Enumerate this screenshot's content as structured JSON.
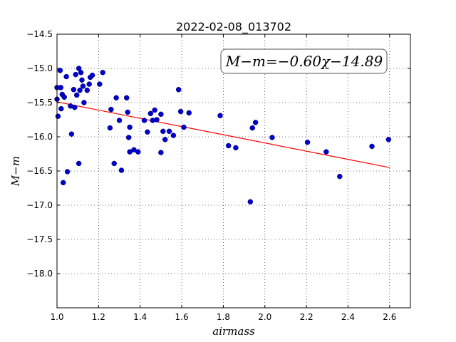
{
  "chart_data": {
    "type": "scatter",
    "title": "2022-02-08_013702",
    "xlabel": "airmass",
    "ylabel": "M−m",
    "xlim": [
      1.0,
      2.7
    ],
    "ylim": [
      -18.5,
      -14.5
    ],
    "y_inverted": true,
    "grid": true,
    "x_ticks": [
      1.0,
      1.2,
      1.4,
      1.6,
      1.8,
      2.0,
      2.2,
      2.4,
      2.6
    ],
    "x_tick_labels": [
      "1.0",
      "1.2",
      "1.4",
      "1.6",
      "1.8",
      "2.0",
      "2.2",
      "2.4",
      "2.6"
    ],
    "y_ticks": [
      -14.5,
      -15.0,
      -15.5,
      -16.0,
      -16.5,
      -17.0,
      -17.5,
      -18.0
    ],
    "y_tick_labels": [
      "−14.5",
      "−15.0",
      "−15.5",
      "−16.0",
      "−16.5",
      "−17.0",
      "−17.5",
      "−18.0"
    ],
    "annotation": "M−m=−0.60χ−14.89",
    "annotation_position": "top-right",
    "fit": {
      "slope": -0.6,
      "intercept": -14.89,
      "x_range": [
        1.0,
        2.6
      ],
      "color": "#ff0000"
    },
    "point_color": "#0000cc",
    "points": [
      {
        "x": 1.0,
        "y": -15.28
      },
      {
        "x": 1.0,
        "y": -15.45
      },
      {
        "x": 1.005,
        "y": -15.7
      },
      {
        "x": 1.015,
        "y": -15.03
      },
      {
        "x": 1.018,
        "y": -15.28
      },
      {
        "x": 1.02,
        "y": -15.59
      },
      {
        "x": 1.025,
        "y": -15.38
      },
      {
        "x": 1.03,
        "y": -16.67
      },
      {
        "x": 1.035,
        "y": -15.42
      },
      {
        "x": 1.045,
        "y": -15.12
      },
      {
        "x": 1.05,
        "y": -16.51
      },
      {
        "x": 1.065,
        "y": -15.55
      },
      {
        "x": 1.07,
        "y": -15.96
      },
      {
        "x": 1.08,
        "y": -15.31
      },
      {
        "x": 1.085,
        "y": -15.57
      },
      {
        "x": 1.09,
        "y": -15.09
      },
      {
        "x": 1.095,
        "y": -15.39
      },
      {
        "x": 1.105,
        "y": -15.0
      },
      {
        "x": 1.105,
        "y": -16.39
      },
      {
        "x": 1.11,
        "y": -15.32
      },
      {
        "x": 1.115,
        "y": -15.06
      },
      {
        "x": 1.12,
        "y": -15.17
      },
      {
        "x": 1.125,
        "y": -15.26
      },
      {
        "x": 1.13,
        "y": -15.5
      },
      {
        "x": 1.145,
        "y": -15.32
      },
      {
        "x": 1.155,
        "y": -15.23
      },
      {
        "x": 1.16,
        "y": -15.13
      },
      {
        "x": 1.17,
        "y": -15.1
      },
      {
        "x": 1.205,
        "y": -15.23
      },
      {
        "x": 1.22,
        "y": -15.06
      },
      {
        "x": 1.255,
        "y": -15.87
      },
      {
        "x": 1.26,
        "y": -15.6
      },
      {
        "x": 1.275,
        "y": -16.39
      },
      {
        "x": 1.285,
        "y": -15.43
      },
      {
        "x": 1.3,
        "y": -15.76
      },
      {
        "x": 1.31,
        "y": -16.49
      },
      {
        "x": 1.335,
        "y": -15.43
      },
      {
        "x": 1.34,
        "y": -15.64
      },
      {
        "x": 1.345,
        "y": -16.01
      },
      {
        "x": 1.35,
        "y": -15.86
      },
      {
        "x": 1.35,
        "y": -16.22
      },
      {
        "x": 1.37,
        "y": -16.19
      },
      {
        "x": 1.39,
        "y": -16.22
      },
      {
        "x": 1.42,
        "y": -15.76
      },
      {
        "x": 1.435,
        "y": -15.93
      },
      {
        "x": 1.45,
        "y": -15.66
      },
      {
        "x": 1.46,
        "y": -15.76
      },
      {
        "x": 1.47,
        "y": -15.61
      },
      {
        "x": 1.48,
        "y": -15.75
      },
      {
        "x": 1.5,
        "y": -16.23
      },
      {
        "x": 1.5,
        "y": -15.67
      },
      {
        "x": 1.51,
        "y": -15.92
      },
      {
        "x": 1.52,
        "y": -16.04
      },
      {
        "x": 1.54,
        "y": -15.92
      },
      {
        "x": 1.56,
        "y": -15.98
      },
      {
        "x": 1.585,
        "y": -15.31
      },
      {
        "x": 1.595,
        "y": -15.63
      },
      {
        "x": 1.61,
        "y": -15.86
      },
      {
        "x": 1.635,
        "y": -15.65
      },
      {
        "x": 1.785,
        "y": -15.69
      },
      {
        "x": 1.825,
        "y": -16.13
      },
      {
        "x": 1.86,
        "y": -16.16
      },
      {
        "x": 1.93,
        "y": -16.95
      },
      {
        "x": 1.94,
        "y": -15.87
      },
      {
        "x": 1.955,
        "y": -15.79
      },
      {
        "x": 2.035,
        "y": -16.01
      },
      {
        "x": 2.205,
        "y": -16.08
      },
      {
        "x": 2.295,
        "y": -16.22
      },
      {
        "x": 2.36,
        "y": -16.58
      },
      {
        "x": 2.515,
        "y": -16.14
      },
      {
        "x": 2.595,
        "y": -16.04
      }
    ]
  }
}
